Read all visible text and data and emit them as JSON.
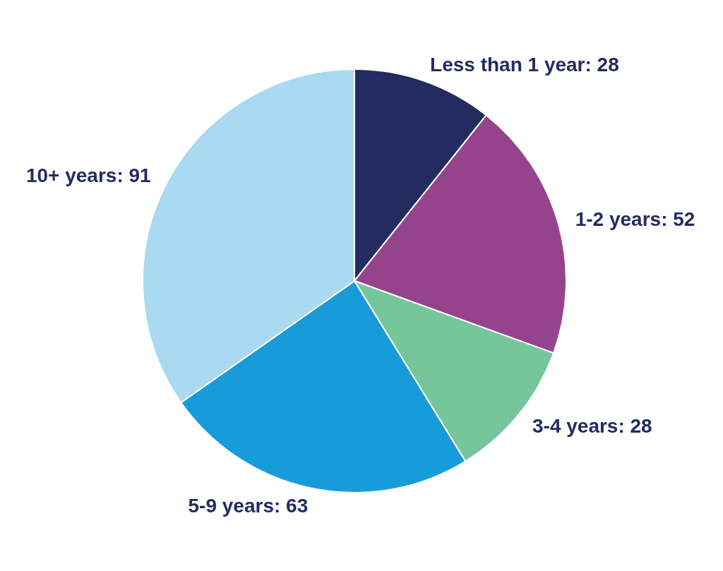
{
  "chart_data": {
    "type": "pie",
    "categories": [
      "Less than 1 year",
      "1-2 years",
      "3-4 years",
      "5-9 years",
      "10+ years"
    ],
    "values": [
      28,
      52,
      28,
      63,
      91
    ],
    "colors": [
      "#232b60",
      "#96438e",
      "#77c69b",
      "#179cd9",
      "#a9daf1"
    ],
    "value_labels": [
      ": 28",
      ": 52",
      ": 28",
      ": 63",
      ": 91"
    ]
  }
}
